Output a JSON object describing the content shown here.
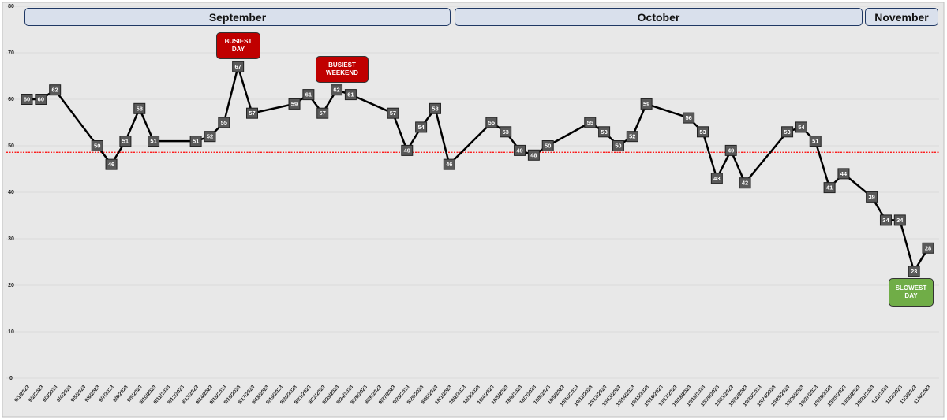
{
  "chart_data": {
    "type": "line",
    "months": [
      "September",
      "October",
      "November"
    ],
    "annotations": [
      "BUSIEST DAY",
      "BUSIEST WEEKEND",
      "SLOWEST DAY"
    ],
    "categories": [
      "9/1/2023",
      "9/2/2023",
      "9/3/2023",
      "9/4/2023",
      "9/5/2023",
      "9/6/2023",
      "9/7/2023",
      "9/8/2023",
      "9/9/2023",
      "9/10/2023",
      "9/11/2023",
      "9/12/2023",
      "9/13/2023",
      "9/14/2023",
      "9/15/2023",
      "9/16/2023",
      "9/17/2023",
      "9/18/2023",
      "9/19/2023",
      "9/20/2023",
      "9/21/2023",
      "9/22/2023",
      "9/23/2023",
      "9/24/2023",
      "9/25/2023",
      "9/26/2023",
      "9/27/2023",
      "9/28/2023",
      "9/29/2023",
      "9/30/2023",
      "10/1/2023",
      "10/2/2023",
      "10/3/2023",
      "10/4/2023",
      "10/5/2023",
      "10/6/2023",
      "10/7/2023",
      "10/8/2023",
      "10/9/2023",
      "10/10/2023",
      "10/11/2023",
      "10/12/2023",
      "10/13/2023",
      "10/14/2023",
      "10/15/2023",
      "10/16/2023",
      "10/17/2023",
      "10/18/2023",
      "10/19/2023",
      "10/20/2023",
      "10/21/2023",
      "10/22/2023",
      "10/23/2023",
      "10/24/2023",
      "10/25/2023",
      "10/26/2023",
      "10/27/2023",
      "10/28/2023",
      "10/29/2023",
      "10/30/2023",
      "10/31/2023",
      "11/1/2023",
      "11/2/2023",
      "11/3/2023",
      "11/4/2023"
    ],
    "series": [
      {
        "color": "#000000",
        "x": [
          "9/1/2023",
          "9/2/2023",
          "9/3/2023",
          "9/6/2023",
          "9/7/2023",
          "9/8/2023",
          "9/9/2023",
          "9/10/2023",
          "9/13/2023",
          "9/14/2023",
          "9/15/2023",
          "9/16/2023",
          "9/17/2023",
          "9/20/2023",
          "9/21/2023",
          "9/22/2023",
          "9/23/2023",
          "9/24/2023",
          "9/27/2023",
          "9/28/2023",
          "9/29/2023",
          "9/30/2023",
          "10/1/2023",
          "10/4/2023",
          "10/5/2023",
          "10/6/2023",
          "10/7/2023",
          "10/8/2023",
          "10/11/2023",
          "10/12/2023",
          "10/13/2023",
          "10/14/2023",
          "10/15/2023",
          "10/18/2023",
          "10/19/2023",
          "10/20/2023",
          "10/21/2023",
          "10/22/2023",
          "10/25/2023",
          "10/26/2023",
          "10/27/2023",
          "10/28/2023",
          "10/29/2023",
          "10/31/2023",
          "11/1/2023",
          "11/2/2023",
          "11/3/2023",
          "11/4/2023"
        ],
        "values": [
          60,
          60,
          62,
          50,
          46,
          51,
          58,
          51,
          51,
          52,
          55,
          67,
          57,
          59,
          61,
          57,
          62,
          61,
          57,
          49,
          54,
          58,
          46,
          55,
          53,
          49,
          48,
          50,
          55,
          53,
          50,
          52,
          59,
          56,
          53,
          43,
          49,
          42,
          53,
          54,
          51,
          41,
          44,
          39,
          34,
          34,
          23,
          28
        ]
      }
    ],
    "average_line": {
      "value": 48.6,
      "color": "#ff0000"
    },
    "ylim": [
      0,
      80
    ],
    "yticks": [
      0,
      10,
      20,
      30,
      40,
      50,
      60,
      70,
      80
    ],
    "grid": true
  }
}
